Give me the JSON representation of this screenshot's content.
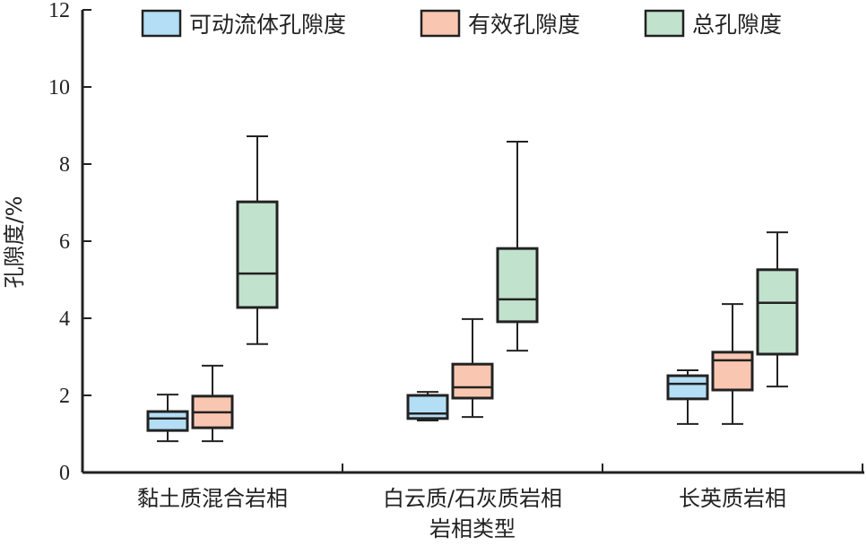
{
  "chart_data": {
    "type": "boxplot",
    "title": "",
    "xlabel": "岩相类型",
    "ylabel": "孔隙度/%",
    "ylim": [
      0,
      12
    ],
    "yticks": [
      0,
      2,
      4,
      6,
      8,
      10,
      12
    ],
    "grid": false,
    "legend_position": "top",
    "categories": [
      "黏土质混合岩相",
      "白云质/石灰质岩相",
      "长英质岩相"
    ],
    "series": [
      {
        "name": "可动流体孔隙度",
        "color": "#b3def5",
        "boxes": [
          {
            "whisker_low": 0.81,
            "q1": 1.09,
            "median": 1.4,
            "q3": 1.58,
            "whisker_high": 2.02
          },
          {
            "whisker_low": 1.35,
            "q1": 1.4,
            "median": 1.53,
            "q3": 2.0,
            "whisker_high": 2.09
          },
          {
            "whisker_low": 1.26,
            "q1": 1.91,
            "median": 2.3,
            "q3": 2.51,
            "whisker_high": 2.65
          }
        ]
      },
      {
        "name": "有效孔隙度",
        "color": "#f9c7b1",
        "boxes": [
          {
            "whisker_low": 0.81,
            "q1": 1.16,
            "median": 1.56,
            "q3": 1.98,
            "whisker_high": 2.77
          },
          {
            "whisker_low": 1.44,
            "q1": 1.93,
            "median": 2.21,
            "q3": 2.81,
            "whisker_high": 3.98
          },
          {
            "whisker_low": 1.26,
            "q1": 2.14,
            "median": 2.91,
            "q3": 3.12,
            "whisker_high": 4.37
          }
        ]
      },
      {
        "name": "总孔隙度",
        "color": "#c1e2cc",
        "boxes": [
          {
            "whisker_low": 3.33,
            "q1": 4.28,
            "median": 5.16,
            "q3": 7.02,
            "whisker_high": 8.72
          },
          {
            "whisker_low": 3.16,
            "q1": 3.91,
            "median": 4.49,
            "q3": 5.81,
            "whisker_high": 8.58
          },
          {
            "whisker_low": 2.23,
            "q1": 3.07,
            "median": 4.4,
            "q3": 5.26,
            "whisker_high": 6.23
          }
        ]
      }
    ]
  }
}
